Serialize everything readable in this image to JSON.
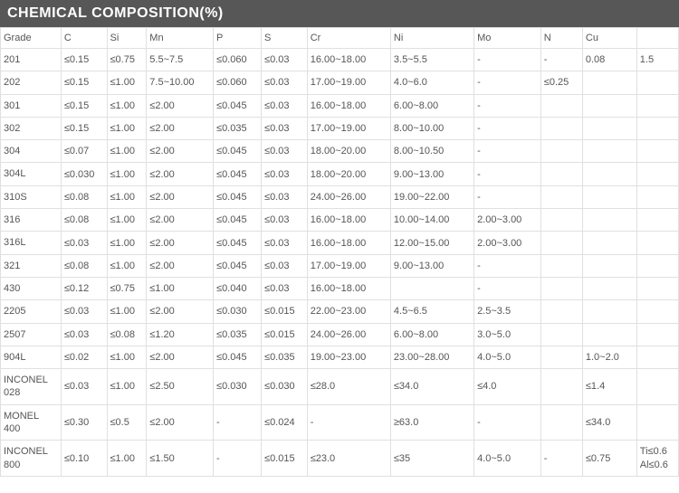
{
  "title": "CHEMICAL COMPOSITION(%)",
  "title_bg": "#575757",
  "title_color": "#ffffff",
  "border_color": "#e0e0e0",
  "text_color": "#555555",
  "columns": [
    "Grade",
    "C",
    "Si",
    "Mn",
    "P",
    "S",
    "Cr",
    "Ni",
    "Mo",
    "N",
    "Cu",
    ""
  ],
  "rows": [
    [
      "201",
      "≤0.15",
      "≤0.75",
      "5.5~7.5",
      "≤0.060",
      "≤0.03",
      "16.00~18.00",
      "3.5~5.5",
      "-",
      "-",
      "0.08",
      "1.5"
    ],
    [
      "202",
      "≤0.15",
      "≤1.00",
      "7.5~10.00",
      "≤0.060",
      "≤0.03",
      "17.00~19.00",
      "4.0~6.0",
      "-",
      "≤0.25",
      "",
      ""
    ],
    [
      "301",
      "≤0.15",
      "≤1.00",
      "≤2.00",
      "≤0.045",
      "≤0.03",
      "16.00~18.00",
      "6.00~8.00",
      "-",
      "",
      "",
      ""
    ],
    [
      "302",
      "≤0.15",
      "≤1.00",
      "≤2.00",
      "≤0.035",
      "≤0.03",
      "17.00~19.00",
      "8.00~10.00",
      "-",
      "",
      "",
      ""
    ],
    [
      "304",
      "≤0.07",
      "≤1.00",
      "≤2.00",
      "≤0.045",
      "≤0.03",
      "18.00~20.00",
      "8.00~10.50",
      "-",
      "",
      "",
      ""
    ],
    [
      "304L",
      "≤0.030",
      "≤1.00",
      "≤2.00",
      "≤0.045",
      "≤0.03",
      "18.00~20.00",
      "9.00~13.00",
      "-",
      "",
      "",
      ""
    ],
    [
      "310S",
      "≤0.08",
      "≤1.00",
      "≤2.00",
      "≤0.045",
      "≤0.03",
      "24.00~26.00",
      "19.00~22.00",
      "-",
      "",
      "",
      ""
    ],
    [
      "316",
      "≤0.08",
      "≤1.00",
      "≤2.00",
      "≤0.045",
      "≤0.03",
      "16.00~18.00",
      "10.00~14.00",
      "2.00~3.00",
      "",
      "",
      ""
    ],
    [
      "316L",
      "≤0.03",
      "≤1.00",
      "≤2.00",
      "≤0.045",
      "≤0.03",
      "16.00~18.00",
      "12.00~15.00",
      "2.00~3.00",
      "",
      "",
      ""
    ],
    [
      "321",
      "≤0.08",
      "≤1.00",
      "≤2.00",
      "≤0.045",
      "≤0.03",
      "17.00~19.00",
      "9.00~13.00",
      "-",
      "",
      "",
      ""
    ],
    [
      "430",
      "≤0.12",
      "≤0.75",
      "≤1.00",
      "≤0.040",
      "≤0.03",
      "16.00~18.00",
      "",
      "-",
      "",
      "",
      ""
    ],
    [
      "2205",
      "≤0.03",
      "≤1.00",
      "≤2.00",
      "≤0.030",
      "≤0.015",
      "22.00~23.00",
      "4.5~6.5",
      "2.5~3.5",
      "",
      "",
      ""
    ],
    [
      "2507",
      "≤0.03",
      "≤0.08",
      "≤1.20",
      "≤0.035",
      "≤0.015",
      "24.00~26.00",
      "6.00~8.00",
      "3.0~5.0",
      "",
      "",
      ""
    ],
    [
      "904L",
      "≤0.02",
      "≤1.00",
      "≤2.00",
      "≤0.045",
      "≤0.035",
      "19.00~23.00",
      "23.00~28.00",
      "4.0~5.0",
      "",
      "1.0~2.0",
      ""
    ],
    [
      "INCONEL 028",
      "≤0.03",
      "≤1.00",
      "≤2.50",
      "≤0.030",
      "≤0.030",
      "≤28.0",
      "≤34.0",
      "≤4.0",
      "",
      "≤1.4",
      ""
    ],
    [
      "MONEL 400",
      "≤0.30",
      "≤0.5",
      "≤2.00",
      "-",
      "≤0.024",
      "-",
      "≥63.0",
      "-",
      "",
      "≤34.0",
      ""
    ],
    [
      "INCONEL 800",
      "≤0.10",
      "≤1.00",
      "≤1.50",
      "-",
      "≤0.015",
      "≤23.0",
      "≤35",
      "4.0~5.0",
      "-",
      "≤0.75",
      "Ti≤0.6 Al≤0.6"
    ]
  ]
}
